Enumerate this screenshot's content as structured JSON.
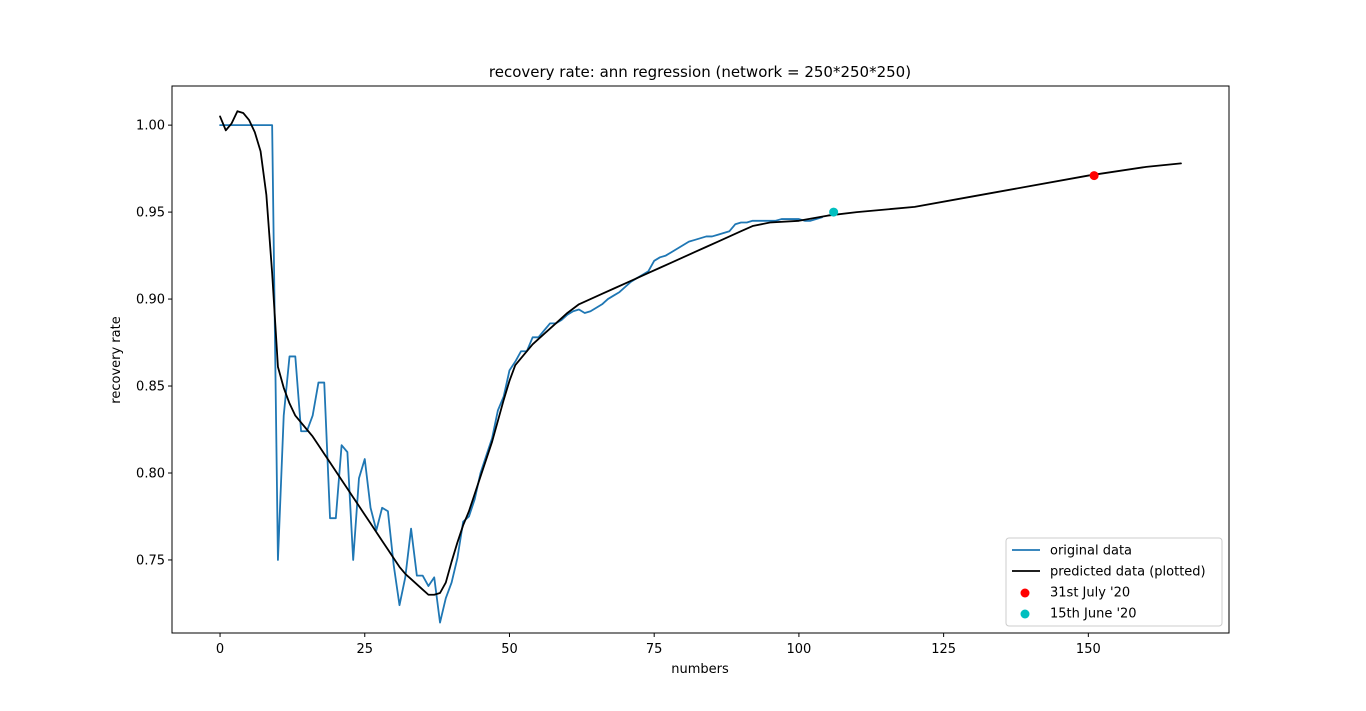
{
  "chart_data": {
    "type": "line",
    "title": "recovery rate: ann regression (network = 250*250*250)",
    "xlabel": "numbers",
    "ylabel": "recovery rate",
    "xlim": [
      -8.3,
      174.3
    ],
    "ylim": [
      0.708,
      1.0225
    ],
    "xticks": [
      0,
      25,
      50,
      75,
      100,
      125,
      150
    ],
    "yticks": [
      0.75,
      0.8,
      0.85,
      0.9,
      0.95,
      1.0
    ],
    "ytick_labels": [
      "0.75",
      "0.80",
      "0.85",
      "0.90",
      "0.95",
      "1.00"
    ],
    "grid": false,
    "legend_position": "lower-right",
    "series": [
      {
        "name": "original data",
        "kind": "line",
        "color": "#1f77b4",
        "x": [
          0,
          1,
          2,
          3,
          4,
          5,
          6,
          7,
          8,
          9,
          10,
          11,
          12,
          13,
          14,
          15,
          16,
          17,
          18,
          19,
          20,
          21,
          22,
          23,
          24,
          25,
          26,
          27,
          28,
          29,
          30,
          31,
          32,
          33,
          34,
          35,
          36,
          37,
          38,
          39,
          40,
          41,
          42,
          43,
          44,
          45,
          46,
          47,
          48,
          49,
          50,
          51,
          52,
          53,
          54,
          55,
          56,
          57,
          58,
          59,
          60,
          61,
          62,
          63,
          64,
          65,
          66,
          67,
          68,
          69,
          70,
          71,
          72,
          73,
          74,
          75,
          76,
          77,
          78,
          79,
          80,
          81,
          82,
          83,
          84,
          85,
          86,
          87,
          88,
          89,
          90,
          91,
          92,
          93,
          94,
          95,
          96,
          97,
          98,
          99,
          100,
          101,
          102,
          103,
          104
        ],
        "y": [
          1.0,
          1.0,
          1.0,
          1.0,
          1.0,
          1.0,
          1.0,
          1.0,
          1.0,
          1.0,
          0.75,
          0.833,
          0.867,
          0.867,
          0.824,
          0.824,
          0.833,
          0.852,
          0.852,
          0.774,
          0.774,
          0.816,
          0.812,
          0.75,
          0.797,
          0.808,
          0.78,
          0.767,
          0.78,
          0.778,
          0.747,
          0.724,
          0.74,
          0.768,
          0.741,
          0.741,
          0.735,
          0.74,
          0.714,
          0.728,
          0.737,
          0.751,
          0.772,
          0.775,
          0.785,
          0.8,
          0.81,
          0.82,
          0.836,
          0.844,
          0.859,
          0.864,
          0.87,
          0.87,
          0.878,
          0.878,
          0.882,
          0.886,
          0.886,
          0.888,
          0.891,
          0.893,
          0.894,
          0.892,
          0.893,
          0.895,
          0.897,
          0.9,
          0.902,
          0.904,
          0.907,
          0.91,
          0.912,
          0.914,
          0.916,
          0.922,
          0.924,
          0.925,
          0.927,
          0.929,
          0.931,
          0.933,
          0.934,
          0.935,
          0.936,
          0.936,
          0.937,
          0.938,
          0.939,
          0.943,
          0.944,
          0.944,
          0.945,
          0.945,
          0.945,
          0.945,
          0.945,
          0.946,
          0.946,
          0.946,
          0.946,
          0.945,
          0.945,
          0.946,
          0.947
        ]
      },
      {
        "name": "predicted data (plotted)",
        "kind": "line",
        "color": "#000000",
        "x": [
          0,
          1,
          2,
          3,
          4,
          5,
          6,
          7,
          8,
          9,
          10,
          11,
          12,
          13,
          14,
          15,
          16,
          17,
          18,
          19,
          20,
          21,
          22,
          23,
          24,
          25,
          26,
          27,
          28,
          29,
          30,
          31,
          32,
          33,
          34,
          35,
          36,
          37,
          38,
          39,
          40,
          41,
          42,
          43,
          44,
          45,
          46,
          47,
          48,
          49,
          50,
          51,
          52,
          54,
          56,
          58,
          60,
          62,
          64,
          66,
          68,
          70,
          72,
          74,
          76,
          78,
          80,
          82,
          84,
          86,
          88,
          90,
          92,
          95,
          100,
          105,
          110,
          120,
          130,
          140,
          150,
          160,
          166
        ],
        "y": [
          1.005,
          0.997,
          1.001,
          1.008,
          1.007,
          1.003,
          0.996,
          0.985,
          0.96,
          0.915,
          0.861,
          0.849,
          0.84,
          0.833,
          0.829,
          0.825,
          0.821,
          0.816,
          0.811,
          0.806,
          0.801,
          0.796,
          0.791,
          0.786,
          0.781,
          0.776,
          0.771,
          0.766,
          0.761,
          0.756,
          0.751,
          0.746,
          0.742,
          0.739,
          0.736,
          0.733,
          0.73,
          0.73,
          0.731,
          0.737,
          0.749,
          0.76,
          0.77,
          0.778,
          0.788,
          0.798,
          0.808,
          0.818,
          0.83,
          0.842,
          0.853,
          0.862,
          0.866,
          0.874,
          0.88,
          0.886,
          0.892,
          0.897,
          0.9,
          0.903,
          0.906,
          0.909,
          0.912,
          0.915,
          0.918,
          0.921,
          0.924,
          0.927,
          0.93,
          0.933,
          0.936,
          0.939,
          0.942,
          0.944,
          0.945,
          0.948,
          0.95,
          0.953,
          0.959,
          0.965,
          0.971,
          0.976,
          0.978
        ]
      },
      {
        "name": "31st July '20",
        "kind": "point",
        "color": "#ff0000",
        "x": [
          151
        ],
        "y": [
          0.971
        ]
      },
      {
        "name": "15th June '20",
        "kind": "point",
        "color": "#00bfbf",
        "x": [
          106
        ],
        "y": [
          0.95
        ]
      }
    ]
  }
}
